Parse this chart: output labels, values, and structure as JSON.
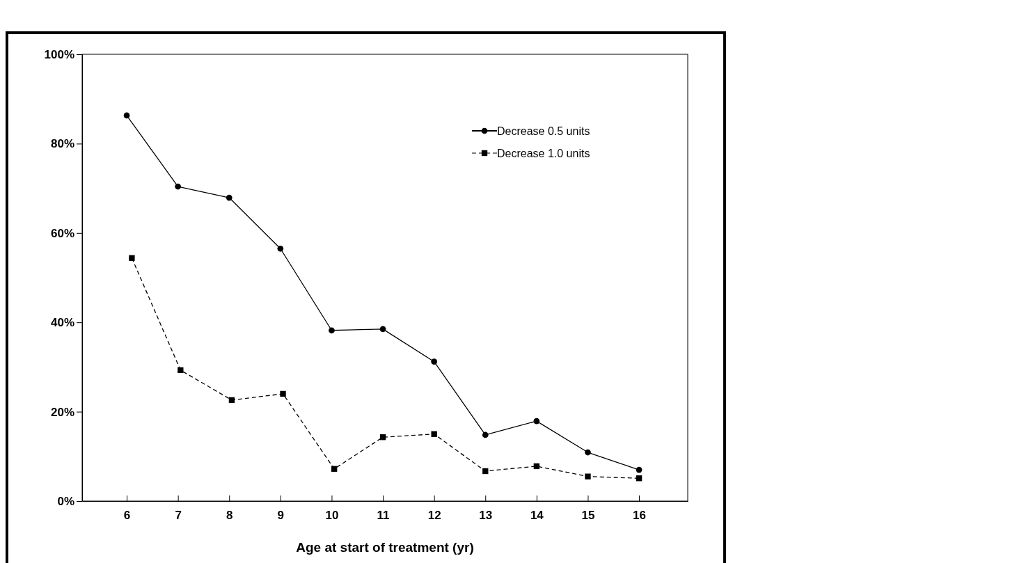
{
  "chart_data": {
    "type": "line",
    "xlabel": "Age at start of treatment (yr)",
    "xlim": [
      5.13,
      16.95
    ],
    "xticks": [
      6,
      7,
      8,
      9,
      10,
      11,
      12,
      13,
      14,
      15,
      16
    ],
    "ylim": [
      0,
      100
    ],
    "yticks": [
      {
        "value": 0,
        "label": "0%"
      },
      {
        "value": 20,
        "label": "20%"
      },
      {
        "value": 40,
        "label": "40%"
      },
      {
        "value": 60,
        "label": "60%"
      },
      {
        "value": 80,
        "label": "80%"
      },
      {
        "value": 100,
        "label": "100%"
      }
    ],
    "grid": false,
    "legend": "top right",
    "series": [
      {
        "name": "Decrease 0.5 units",
        "color": "#000000",
        "marker": "circle",
        "line_style": "solid",
        "x": [
          6,
          7,
          8,
          9,
          10,
          11,
          12,
          13,
          14,
          15,
          16
        ],
        "values": [
          86.3,
          70.4,
          67.9,
          56.5,
          38.2,
          38.5,
          31.2,
          14.8,
          17.9,
          10.9,
          7.0
        ]
      },
      {
        "name": "Decrease 1.0 units",
        "color": "#000000",
        "marker": "square",
        "line_style": "dashed",
        "x": [
          6.1,
          7.05,
          8.05,
          9.05,
          10.05,
          11,
          12,
          13,
          14,
          15,
          16
        ],
        "values": [
          54.4,
          29.3,
          22.6,
          24.0,
          7.2,
          14.3,
          15.0,
          6.7,
          7.8,
          5.5,
          5.1
        ]
      }
    ]
  }
}
